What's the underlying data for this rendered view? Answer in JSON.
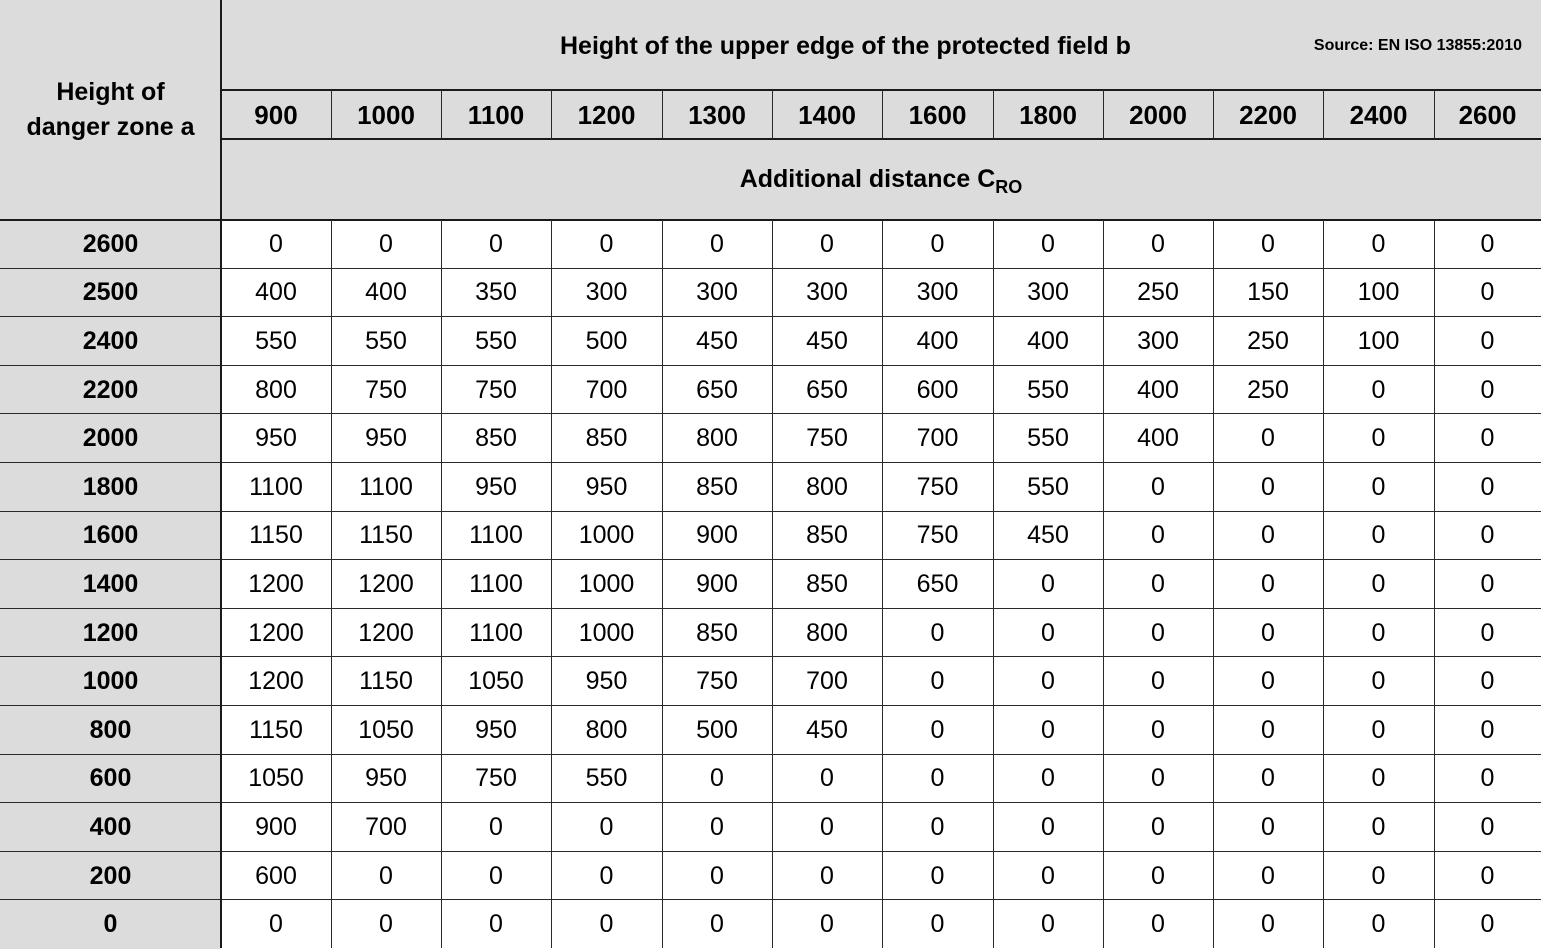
{
  "header": {
    "corner_line1": "Height of",
    "corner_line2": "danger zone a",
    "title": "Height of the upper edge of the protected field b",
    "source": "Source: EN ISO 13855:2010",
    "subtitle_main": "Additional distance C",
    "subtitle_sub": "RO"
  },
  "columns": [
    "900",
    "1000",
    "1100",
    "1200",
    "1300",
    "1400",
    "1600",
    "1800",
    "2000",
    "2200",
    "2400",
    "2600"
  ],
  "rows": [
    {
      "label": "2600",
      "values": [
        "0",
        "0",
        "0",
        "0",
        "0",
        "0",
        "0",
        "0",
        "0",
        "0",
        "0",
        "0"
      ]
    },
    {
      "label": "2500",
      "values": [
        "400",
        "400",
        "350",
        "300",
        "300",
        "300",
        "300",
        "300",
        "250",
        "150",
        "100",
        "0"
      ]
    },
    {
      "label": "2400",
      "values": [
        "550",
        "550",
        "550",
        "500",
        "450",
        "450",
        "400",
        "400",
        "300",
        "250",
        "100",
        "0"
      ]
    },
    {
      "label": "2200",
      "values": [
        "800",
        "750",
        "750",
        "700",
        "650",
        "650",
        "600",
        "550",
        "400",
        "250",
        "0",
        "0"
      ]
    },
    {
      "label": "2000",
      "values": [
        "950",
        "950",
        "850",
        "850",
        "800",
        "750",
        "700",
        "550",
        "400",
        "0",
        "0",
        "0"
      ]
    },
    {
      "label": "1800",
      "values": [
        "1100",
        "1100",
        "950",
        "950",
        "850",
        "800",
        "750",
        "550",
        "0",
        "0",
        "0",
        "0"
      ]
    },
    {
      "label": "1600",
      "values": [
        "1150",
        "1150",
        "1100",
        "1000",
        "900",
        "850",
        "750",
        "450",
        "0",
        "0",
        "0",
        "0"
      ]
    },
    {
      "label": "1400",
      "values": [
        "1200",
        "1200",
        "1100",
        "1000",
        "900",
        "850",
        "650",
        "0",
        "0",
        "0",
        "0",
        "0"
      ]
    },
    {
      "label": "1200",
      "values": [
        "1200",
        "1200",
        "1100",
        "1000",
        "850",
        "800",
        "0",
        "0",
        "0",
        "0",
        "0",
        "0"
      ]
    },
    {
      "label": "1000",
      "values": [
        "1200",
        "1150",
        "1050",
        "950",
        "750",
        "700",
        "0",
        "0",
        "0",
        "0",
        "0",
        "0"
      ]
    },
    {
      "label": "800",
      "values": [
        "1150",
        "1050",
        "950",
        "800",
        "500",
        "450",
        "0",
        "0",
        "0",
        "0",
        "0",
        "0"
      ]
    },
    {
      "label": "600",
      "values": [
        "1050",
        "950",
        "750",
        "550",
        "0",
        "0",
        "0",
        "0",
        "0",
        "0",
        "0",
        "0"
      ]
    },
    {
      "label": "400",
      "values": [
        "900",
        "700",
        "0",
        "0",
        "0",
        "0",
        "0",
        "0",
        "0",
        "0",
        "0",
        "0"
      ]
    },
    {
      "label": "200",
      "values": [
        "600",
        "0",
        "0",
        "0",
        "0",
        "0",
        "0",
        "0",
        "0",
        "0",
        "0",
        "0"
      ]
    },
    {
      "label": "0",
      "values": [
        "0",
        "0",
        "0",
        "0",
        "0",
        "0",
        "0",
        "0",
        "0",
        "0",
        "0",
        "0"
      ]
    }
  ],
  "colors": {
    "header_fill": "#dcdcdc",
    "grid": "#2a2a2a",
    "cell_fill": "#ffffff"
  }
}
